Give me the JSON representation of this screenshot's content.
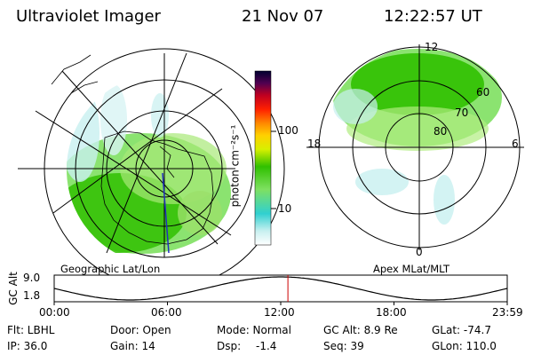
{
  "header": {
    "instrument": "Ultraviolet Imager",
    "date": "21 Nov 07",
    "time": "12:22:57 UT"
  },
  "left_panel": {
    "label": "Geographic Lat/Lon"
  },
  "right_panel": {
    "label": "Apex MLat/MLT",
    "mlt_labels": {
      "top": "12",
      "left": "18",
      "right": "6",
      "bottom": "0"
    },
    "lat_labels": [
      "60",
      "70",
      "80"
    ]
  },
  "colorbar": {
    "unit_label": "photon cm⁻²s⁻¹",
    "ticks": [
      {
        "label": "100",
        "value": 100
      },
      {
        "label": "10",
        "value": 10
      }
    ],
    "colors": [
      "#ffffff",
      "#c8f0f0",
      "#30d0d0",
      "#7ee060",
      "#30c000",
      "#d8f000",
      "#ffd000",
      "#ff8800",
      "#ff2000",
      "#c00020",
      "#500050",
      "#000030"
    ]
  },
  "altitude_plot": {
    "ylabel": "GC Alt",
    "yticks": [
      "9.0",
      "1.8"
    ],
    "xticks": [
      "00:00",
      "06:00",
      "12:00",
      "18:00",
      "23:59"
    ],
    "current_time_fraction": 0.5159,
    "marker_color": "#cc0000"
  },
  "info": {
    "row1": {
      "filter": "Flt: LBHL",
      "door": "Door: Open",
      "mode": "Mode: Normal",
      "gc_alt": "GC Alt: 8.9 Re",
      "glat": "GLat: -74.7"
    },
    "row2": {
      "ip": "IP: 36.0",
      "gain": "Gain: 14",
      "dsp_label": "Dsp:",
      "dsp_value": "-1.4",
      "seq": "Seq: 39",
      "glon": "GLon: 110.0"
    }
  }
}
